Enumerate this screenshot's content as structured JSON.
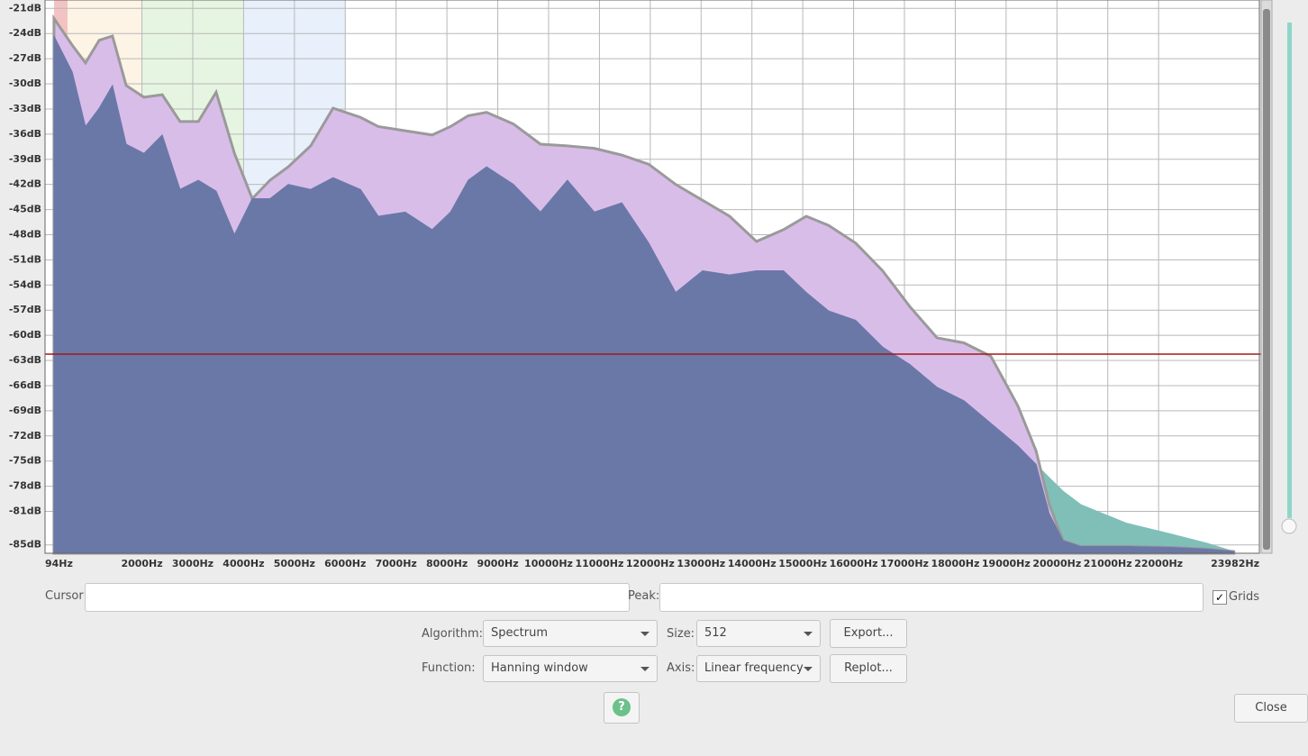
{
  "chart": {
    "type": "area",
    "x": [
      270,
      630,
      890,
      1160,
      1420,
      1690,
      2040,
      2400,
      2750,
      3110,
      3460,
      3820,
      4170,
      4520,
      4880,
      5320,
      5760,
      6300,
      6650,
      7180,
      7710,
      8070,
      8420,
      8780,
      9310,
      9840,
      10370,
      10900,
      11440,
      11970,
      12500,
      13030,
      13560,
      14090,
      14620,
      15070,
      15510,
      16040,
      16570,
      17110,
      17640,
      18170,
      18700,
      19230,
      19590,
      19850,
      20120,
      20470,
      21360,
      22240,
      22950,
      23480
    ],
    "series": [
      {
        "color": "#7fbfb8",
        "values": [
          null,
          null,
          null,
          null,
          null,
          null,
          null,
          null,
          null,
          null,
          null,
          null,
          null,
          null,
          null,
          null,
          null,
          null,
          null,
          null,
          null,
          null,
          null,
          null,
          null,
          null,
          null,
          null,
          null,
          null,
          null,
          null,
          null,
          null,
          null,
          null,
          null,
          null,
          null,
          null,
          null,
          null,
          null,
          null,
          -75.4,
          -77.0,
          -78.6,
          -80.2,
          -82.4,
          -83.7,
          -84.8,
          -85.8
        ]
      },
      {
        "color": "#d9bde9",
        "values": [
          -22.2,
          -25.4,
          -27.5,
          -24.8,
          -24.3,
          -30.2,
          -31.6,
          -31.3,
          -34.5,
          -34.5,
          -31.0,
          -38.3,
          -43.7,
          -41.5,
          -39.9,
          -37.4,
          -32.9,
          -34.0,
          -35.1,
          -35.6,
          -36.1,
          -35.1,
          -33.8,
          -33.4,
          -34.8,
          -37.2,
          -37.4,
          -37.7,
          -38.5,
          -39.6,
          -42.0,
          -43.9,
          -45.8,
          -48.8,
          -47.4,
          -45.8,
          -46.9,
          -49.0,
          -52.3,
          -56.6,
          -60.3,
          -60.9,
          -62.5,
          -68.4,
          -73.8,
          -80.2,
          -84.5,
          -85.2,
          -85.2,
          -85.3,
          -85.5,
          -85.8
        ]
      },
      {
        "color": "#6a78a8",
        "values": [
          -24.3,
          -28.6,
          -35.1,
          -32.9,
          -30.2,
          -37.2,
          -38.3,
          -36.1,
          -42.6,
          -41.5,
          -42.8,
          -48.0,
          -43.7,
          -43.7,
          -42.0,
          -42.6,
          -41.2,
          -42.6,
          -45.8,
          -45.3,
          -47.4,
          -45.3,
          -41.5,
          -39.9,
          -42.0,
          -45.3,
          -41.5,
          -45.3,
          -44.2,
          -49.0,
          -54.9,
          -52.3,
          -52.8,
          -52.3,
          -52.3,
          -54.9,
          -57.1,
          -58.2,
          -61.4,
          -63.5,
          -66.2,
          -67.8,
          -70.5,
          -73.2,
          -75.4,
          -81.3,
          -84.5,
          -85.2,
          -85.2,
          -85.3,
          -85.5,
          -85.8
        ]
      }
    ],
    "xlim": [
      94,
      23982
    ],
    "ylim": [
      -20,
      -86
    ],
    "xticks": [
      {
        "value": 94,
        "label": "94Hz"
      },
      {
        "value": 2000,
        "label": "2000Hz"
      },
      {
        "value": 3000,
        "label": "3000Hz"
      },
      {
        "value": 4000,
        "label": "4000Hz"
      },
      {
        "value": 5000,
        "label": "5000Hz"
      },
      {
        "value": 6000,
        "label": "6000Hz"
      },
      {
        "value": 7000,
        "label": "7000Hz"
      },
      {
        "value": 8000,
        "label": "8000Hz"
      },
      {
        "value": 9000,
        "label": "9000Hz"
      },
      {
        "value": 10000,
        "label": "10000Hz"
      },
      {
        "value": 11000,
        "label": "11000Hz"
      },
      {
        "value": 12000,
        "label": "12000Hz"
      },
      {
        "value": 13000,
        "label": "13000Hz"
      },
      {
        "value": 14000,
        "label": "14000Hz"
      },
      {
        "value": 15000,
        "label": "15000Hz"
      },
      {
        "value": 16000,
        "label": "16000Hz"
      },
      {
        "value": 17000,
        "label": "17000Hz"
      },
      {
        "value": 18000,
        "label": "18000Hz"
      },
      {
        "value": 19000,
        "label": "19000Hz"
      },
      {
        "value": 20000,
        "label": "20000Hz"
      },
      {
        "value": 21000,
        "label": "21000Hz"
      },
      {
        "value": 22000,
        "label": "22000Hz"
      },
      {
        "value": 23982,
        "label": "23982Hz"
      }
    ],
    "yticks": [
      {
        "value": -21,
        "label": "-21dB"
      },
      {
        "value": -24,
        "label": "-24dB"
      },
      {
        "value": -27,
        "label": "-27dB"
      },
      {
        "value": -30,
        "label": "-30dB"
      },
      {
        "value": -33,
        "label": "-33dB"
      },
      {
        "value": -36,
        "label": "-36dB"
      },
      {
        "value": -39,
        "label": "-39dB"
      },
      {
        "value": -42,
        "label": "-42dB"
      },
      {
        "value": -45,
        "label": "-45dB"
      },
      {
        "value": -48,
        "label": "-48dB"
      },
      {
        "value": -51,
        "label": "-51dB"
      },
      {
        "value": -54,
        "label": "-54dB"
      },
      {
        "value": -57,
        "label": "-57dB"
      },
      {
        "value": -60,
        "label": "-60dB"
      },
      {
        "value": -63,
        "label": "-63dB"
      },
      {
        "value": -66,
        "label": "-66dB"
      },
      {
        "value": -69,
        "label": "-69dB"
      },
      {
        "value": -72,
        "label": "-72dB"
      },
      {
        "value": -75,
        "label": "-75dB"
      },
      {
        "value": -78,
        "label": "-78dB"
      },
      {
        "value": -81,
        "label": "-81dB"
      },
      {
        "value": -85,
        "label": "-85dB"
      }
    ],
    "grid": true
  },
  "controls": {
    "cursor_label": "Cursor:",
    "peak_label": "Peak:",
    "grids_label": "Grids",
    "algorithm_label": "Algorithm:",
    "algorithm_value": "Spectrum",
    "size_label": "Size:",
    "size_value": "512",
    "export_button": "Export...",
    "function_label": "Function:",
    "function_value": "Hanning window",
    "axis_label": "Axis:",
    "axis_value": "Linear frequency",
    "replot_button": "Replot...",
    "close_button": "Close"
  }
}
